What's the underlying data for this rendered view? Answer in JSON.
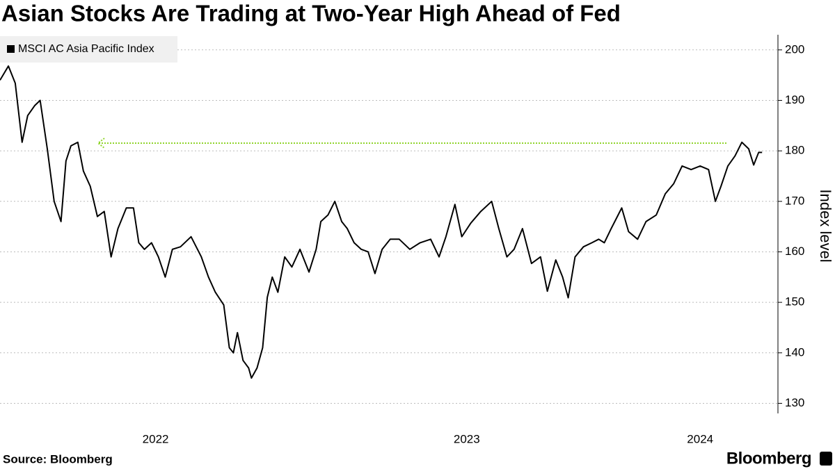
{
  "chart_data": {
    "type": "line",
    "title": "Asian Stocks Are Trading at Two-Year High Ahead of Fed",
    "ylabel": "Index level",
    "source": "Source: Bloomberg",
    "brand": "Bloomberg",
    "xlim": [
      2022,
      2024.5
    ],
    "xticks": [
      {
        "value": 2022.5,
        "label": "2022"
      },
      {
        "value": 2023.5,
        "label": "2023"
      },
      {
        "value": 2024.25,
        "label": "2024"
      }
    ],
    "ylim": [
      128,
      203
    ],
    "yticks": [
      130,
      140,
      150,
      160,
      170,
      180,
      190,
      200
    ],
    "grid": true,
    "legend": "top-left",
    "series": [
      {
        "name": "MSCI AC Asia Pacific Index",
        "color": "#000000",
        "x": [
          2022.0,
          2022.027,
          2022.049,
          2022.071,
          2022.089,
          2022.112,
          2022.129,
          2022.152,
          2022.174,
          2022.196,
          2022.212,
          2022.228,
          2022.25,
          2022.268,
          2022.29,
          2022.313,
          2022.335,
          2022.357,
          2022.379,
          2022.406,
          2022.429,
          2022.446,
          2022.464,
          2022.487,
          2022.509,
          2022.531,
          2022.554,
          2022.58,
          2022.614,
          2022.647,
          2022.67,
          2022.692,
          2022.719,
          2022.737,
          2022.75,
          2022.763,
          2022.781,
          2022.799,
          2022.808,
          2022.826,
          2022.844,
          2022.859,
          2022.875,
          2022.893,
          2022.915,
          2022.938,
          2022.964,
          2022.993,
          2023.016,
          2023.031,
          2023.054,
          2023.076,
          2023.098,
          2023.116,
          2023.138,
          2023.161,
          2023.183,
          2023.205,
          2023.228,
          2023.254,
          2023.283,
          2023.317,
          2023.35,
          2023.384,
          2023.411,
          2023.433,
          2023.462,
          2023.484,
          2023.513,
          2023.545,
          2023.58,
          2023.603,
          2023.629,
          2023.652,
          2023.679,
          2023.708,
          2023.737,
          2023.759,
          2023.786,
          2023.808,
          2023.826,
          2023.848,
          2023.875,
          2023.902,
          2023.924,
          2023.942,
          2023.964,
          2023.998,
          2024.02,
          2024.049,
          2024.076,
          2024.109,
          2024.138,
          2024.165,
          2024.192,
          2024.221,
          2024.25,
          2024.277,
          2024.299,
          2024.317,
          2024.339,
          2024.362,
          2024.384,
          2024.406,
          2024.422,
          2024.438,
          2024.449
        ],
        "values": [
          194,
          196.8,
          193.4,
          181.7,
          187,
          189,
          190,
          180.4,
          170,
          166,
          178,
          181,
          181.7,
          176,
          173,
          167,
          168,
          159,
          164.6,
          168.7,
          168.7,
          161.8,
          160.5,
          161.8,
          159,
          155,
          160.5,
          161,
          163,
          159,
          155,
          152,
          149.5,
          141,
          140,
          144,
          138.5,
          137,
          135,
          137,
          141,
          151,
          155,
          152,
          159,
          157,
          160.5,
          156,
          160.5,
          166,
          167.3,
          170,
          166,
          164.6,
          161.8,
          160.5,
          160,
          155.7,
          160.5,
          162.5,
          162.5,
          160.5,
          161.8,
          162.5,
          159,
          163,
          169.4,
          163,
          165.7,
          168,
          170,
          164.6,
          159,
          160.5,
          164.6,
          157.7,
          159,
          152.2,
          158.4,
          155,
          150.9,
          159,
          161,
          161.8,
          162.5,
          161.8,
          164.6,
          168.7,
          164,
          162.5,
          166,
          167.3,
          171.5,
          173.5,
          177,
          176.3,
          177,
          176.3,
          170,
          173,
          177,
          179,
          181.7,
          180.4,
          177.2,
          179.7,
          179.7
        ]
      }
    ]
  }
}
